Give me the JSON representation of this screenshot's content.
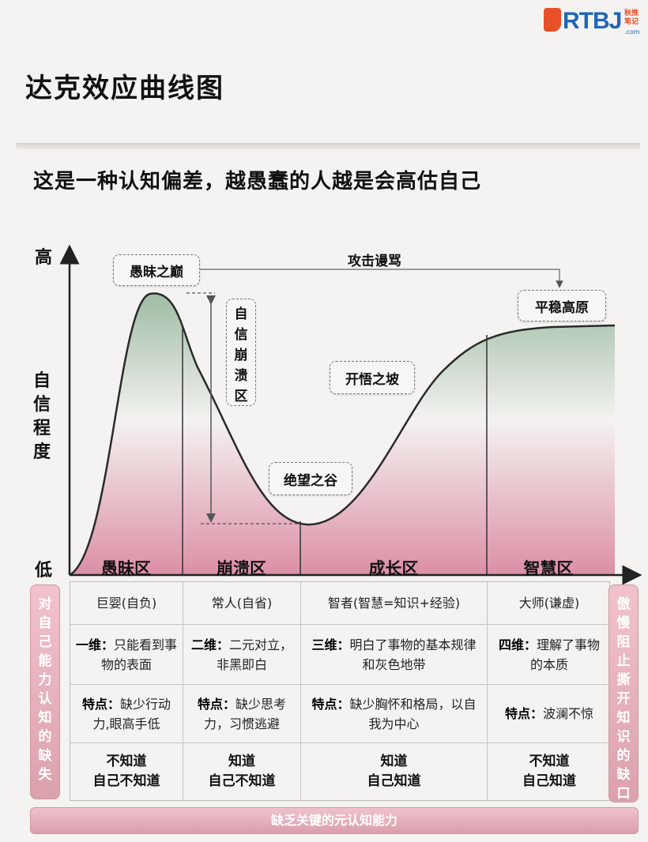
{
  "logo": {
    "brand": "RTBJ",
    "side_text_1": "秋推",
    "side_text_2": "笔记",
    "sub": ".com"
  },
  "title": "达克效应曲线图",
  "subtitle": "这是一种认知偏差，越愚蠢的人越是会高估自己",
  "axis": {
    "high": "高",
    "low": "低",
    "y_label": [
      "自",
      "信",
      "程",
      "度"
    ]
  },
  "curve_labels": {
    "peak": "愚昧之巅",
    "attack": "攻击谩骂",
    "plateau": "平稳高原",
    "collapse": [
      "自",
      "信",
      "崩",
      "溃",
      "区"
    ],
    "slope": "开悟之坡",
    "valley": "绝望之谷"
  },
  "zones": [
    "愚昧区",
    "崩溃区",
    "成长区",
    "智慧区"
  ],
  "table": {
    "rows": [
      {
        "cells": [
          {
            "text": "巨婴(自负)"
          },
          {
            "text": "常人(自省)"
          },
          {
            "text": "智者(智慧=知识+经验)"
          },
          {
            "text": "大师(谦虚)"
          }
        ]
      },
      {
        "cells": [
          {
            "key": "一维：",
            "text": "只能看到事物的表面"
          },
          {
            "key": "二维：",
            "text": "二元对立，非黑即白"
          },
          {
            "key": "三维：",
            "text": "明白了事物的基本规律和灰色地带"
          },
          {
            "key": "四维：",
            "text": "理解了事物的本质"
          }
        ]
      },
      {
        "cells": [
          {
            "key": "特点：",
            "text": "缺少行动力,眼高手低"
          },
          {
            "key": "特点：",
            "text": "缺少思考力，习惯逃避"
          },
          {
            "key": "特点：",
            "text": "缺少胸怀和格局，以自我为中心"
          },
          {
            "key": "特点：",
            "text": "波澜不惊"
          }
        ]
      },
      {
        "cells": [
          {
            "line1": "不知道",
            "line2": "自己不知道"
          },
          {
            "line1": "知道",
            "line2": "自己不知道"
          },
          {
            "line1": "知道",
            "line2": "自己知道"
          },
          {
            "line1": "不知道",
            "line2": "自己知道"
          }
        ]
      }
    ]
  },
  "left_side": "对自己能力认知的缺失",
  "right_side": "傲慢阻止撕开知识的缺口",
  "footer": "缺乏关键的元认知能力",
  "colors": {
    "pink": "#e2a3b3",
    "green": "#a9c3ad",
    "accent_blue": "#1f66b8",
    "accent_orange": "#e8502a"
  }
}
